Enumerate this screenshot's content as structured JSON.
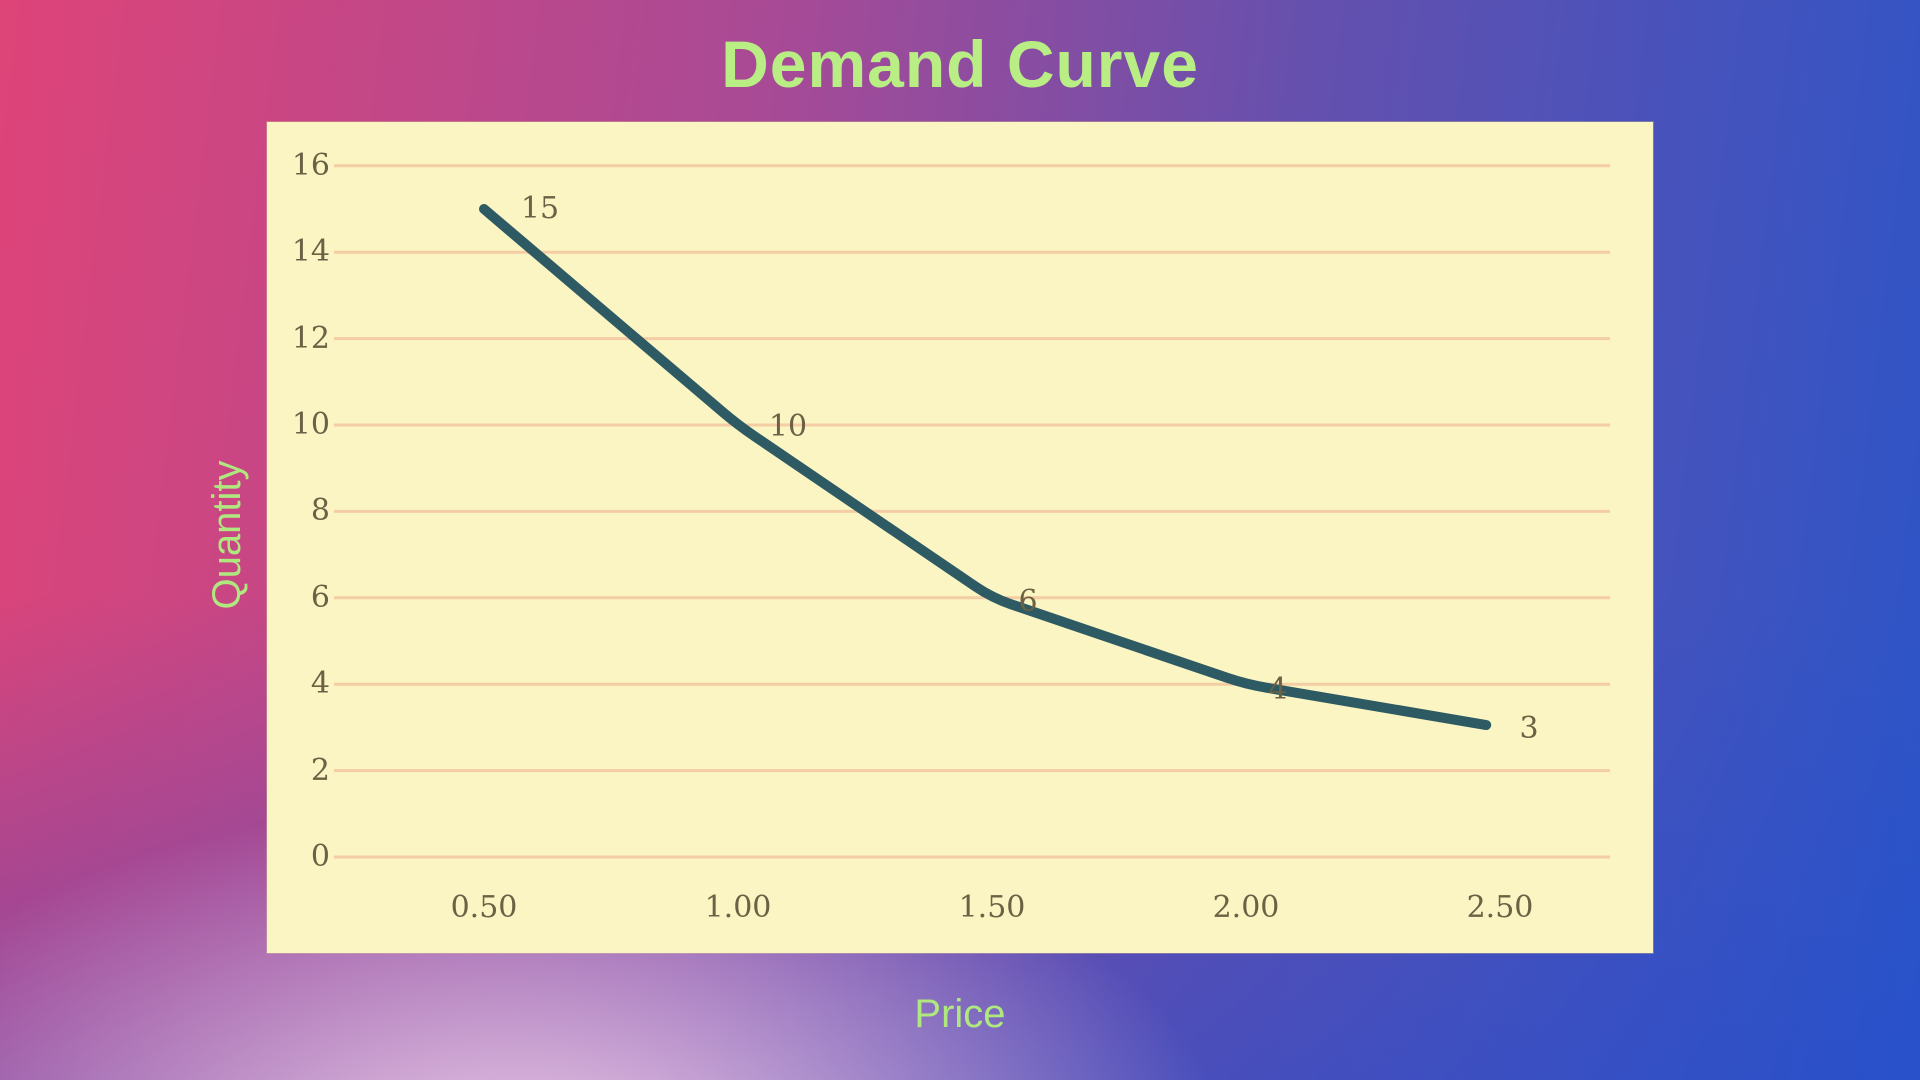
{
  "title": "Demand Curve",
  "axis_titles": {
    "y": "Quantity",
    "x": "Price"
  },
  "colors": {
    "title_green": "#B9EE85",
    "axis_label_green": "#AEE87F",
    "panel_bg": "#FBF5C3",
    "gridline": "#F5CDA4",
    "line": "#2E5B63",
    "tick_text": "#6B6144",
    "bg_top_left": "#DE4478",
    "bg_top_right": "#6550AE",
    "bg_bottom_left": "#E795BE",
    "bg_bottom_right": "#2B55C8"
  },
  "chart_data": {
    "type": "line",
    "title": "Demand Curve",
    "xlabel": "Price",
    "ylabel": "Quantity",
    "x": [
      0.5,
      1.0,
      1.5,
      2.0,
      2.5
    ],
    "y": [
      15,
      10,
      6,
      4,
      3
    ],
    "data_labels": [
      "15",
      "10",
      "6",
      "4",
      "3"
    ],
    "x_tick_labels": [
      "0.50",
      "1.00",
      "1.50",
      "2.00",
      "2.50"
    ],
    "y_ticks": [
      0,
      2,
      4,
      6,
      8,
      10,
      12,
      14,
      16
    ],
    "ylim": [
      0,
      16
    ],
    "grid": "horizontal",
    "legend": "none",
    "marker": "none",
    "line_style": "solid"
  }
}
